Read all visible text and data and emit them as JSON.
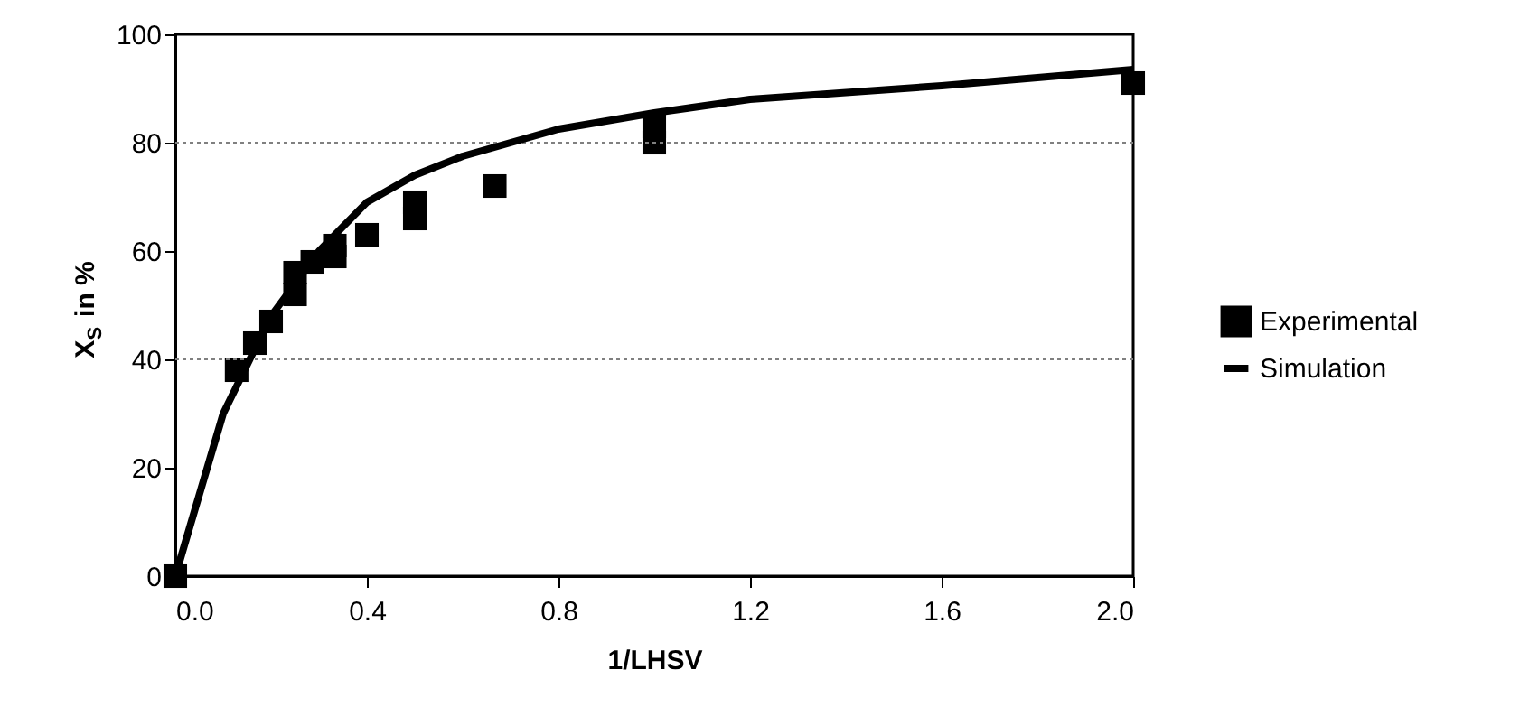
{
  "chart_data": {
    "type": "scatter",
    "xlabel": "1/LHSV",
    "ylabel": "X$_{S}$ in %",
    "xlim": [
      0,
      2
    ],
    "xticks": [
      {
        "value": 0,
        "label": "0.0"
      },
      {
        "value": 0.4,
        "label": "0.4"
      },
      {
        "value": 0.8,
        "label": "0.8"
      },
      {
        "value": 1.2,
        "label": "1.2"
      },
      {
        "value": 1.6,
        "label": "1.6"
      },
      {
        "value": 2,
        "label": "2.0"
      }
    ],
    "ylim": [
      0,
      100
    ],
    "yticks": [
      0,
      20,
      40,
      60,
      80,
      100
    ],
    "legend": "right",
    "ref_lines": [
      {
        "axis": "y",
        "value": 40,
        "color": "#808080",
        "line_style": "dotted"
      },
      {
        "axis": "y",
        "value": 80,
        "color": "#808080",
        "line_style": "dotted"
      }
    ],
    "series": [
      {
        "name": "Experimental",
        "marker": "square",
        "color": "#000000",
        "x": [
          0,
          0.128,
          0.166,
          0.2,
          0.25,
          0.25,
          0.286,
          0.333,
          0.333,
          0.4,
          0.5,
          0.5,
          0.667,
          1.0,
          1.0,
          2.0
        ],
        "values": [
          0,
          38,
          43,
          47,
          52,
          56,
          58,
          59,
          61,
          63,
          66,
          69,
          72,
          80,
          83,
          91
        ]
      },
      {
        "name": "Simulation",
        "type": "line",
        "color": "#000000",
        "line_style": "solid",
        "marker": "none",
        "x": [
          0,
          0.1,
          0.2,
          0.3,
          0.4,
          0.5,
          0.6,
          0.7,
          0.8,
          1.0,
          1.2,
          1.6,
          2.0
        ],
        "values": [
          0,
          30,
          48,
          60,
          69,
          74,
          77.5,
          80,
          82.5,
          85.5,
          88,
          90.5,
          93.5
        ]
      }
    ]
  }
}
